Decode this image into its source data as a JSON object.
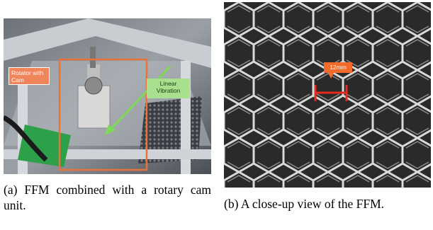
{
  "figures": [
    {
      "annotations": [
        "Rotator with Cam",
        "Linear Vibration"
      ],
      "caption": "(a) FFM combined with a rotary cam unit."
    },
    {
      "annotations": [
        "12mm"
      ],
      "caption": "(b) A close-up view of the FFM."
    }
  ]
}
